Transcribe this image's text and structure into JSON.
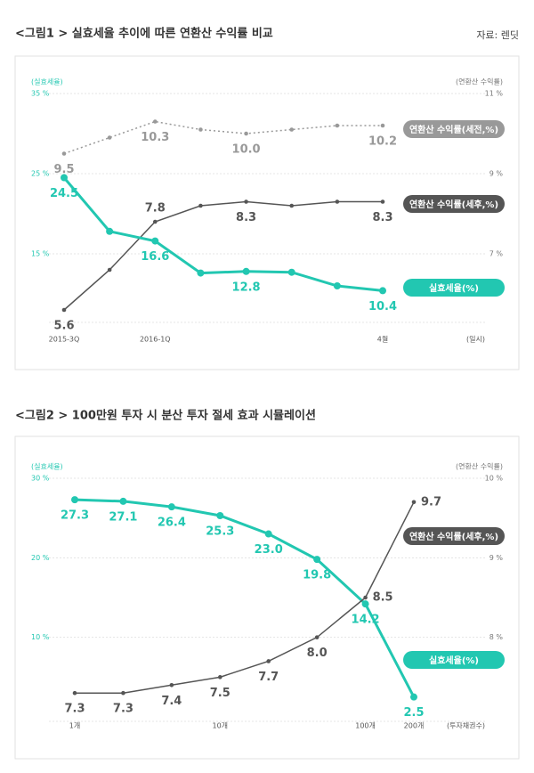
{
  "source": "자료: 렌딧",
  "chart_data": [
    {
      "type": "line",
      "title": "<그림1 > 실효세율 추이에 따른 연환산 수익률 비교",
      "y_label": "(실효세율)",
      "y2_label": "(연환산 수익률)",
      "x_label": "(일시)",
      "categories": [
        "2015-3Q",
        null,
        "2016-1Q",
        null,
        null,
        null,
        null,
        "4월"
      ],
      "ylim": [
        7,
        35
      ],
      "yticks": [
        {
          "value": 35,
          "label": "35 %"
        },
        {
          "value": 25,
          "label": "25 %"
        },
        {
          "value": 15,
          "label": "15 %"
        }
      ],
      "y2lim": [
        5.4,
        11
      ],
      "y2ticks": [
        {
          "value": 11,
          "label": "11 %"
        },
        {
          "value": 9,
          "label": "9 %"
        },
        {
          "value": 7,
          "label": "7 %"
        }
      ],
      "grid": true,
      "series": [
        {
          "name": "연환산 수익률(세전,%)",
          "color": "#999999",
          "axis": "y2",
          "dashed": true,
          "values": [
            9.5,
            9.9,
            10.3,
            10.1,
            10.0,
            10.1,
            10.2,
            10.2
          ],
          "value_labels": [
            "9.5",
            null,
            "10.3",
            null,
            "10.0",
            null,
            null,
            "10.2"
          ]
        },
        {
          "name": "연환산 수익률(세후,%)",
          "color": "#555555",
          "axis": "y2",
          "values": [
            5.6,
            6.6,
            7.8,
            8.2,
            8.3,
            8.2,
            8.3,
            8.3
          ],
          "value_labels": [
            "5.6",
            null,
            "7.8",
            null,
            "8.3",
            null,
            null,
            "8.3"
          ]
        },
        {
          "name": "실효세율(%)",
          "color": "#22c7b1",
          "values": [
            24.5,
            17.8,
            16.6,
            12.6,
            12.8,
            12.7,
            11.0,
            10.4
          ],
          "value_labels": [
            "24.5",
            null,
            "16.6",
            null,
            "12.8",
            null,
            null,
            "10.4"
          ]
        }
      ]
    },
    {
      "type": "line",
      "title": "<그림2 > 100만원 투자 시 분산 투자 절세 효과 시뮬레이션",
      "y_label": "(실효세율)",
      "y2_label": "(연환산 수익률)",
      "x_label": "(투자채권수)",
      "categories": [
        "1개",
        null,
        null,
        "10개",
        null,
        null,
        "100개",
        "200개"
      ],
      "ylim": [
        0,
        30
      ],
      "yticks": [
        {
          "value": 30,
          "label": "30 %"
        },
        {
          "value": 20,
          "label": "20 %"
        },
        {
          "value": 10,
          "label": "10 %"
        }
      ],
      "y2lim": [
        7,
        10
      ],
      "y2ticks": [
        {
          "value": 10,
          "label": "10 %"
        },
        {
          "value": 9,
          "label": "9 %"
        },
        {
          "value": 8,
          "label": "8 %"
        }
      ],
      "grid": true,
      "series": [
        {
          "name": "실효세율(%)",
          "color": "#22c7b1",
          "values": [
            27.3,
            27.1,
            26.4,
            25.3,
            23.0,
            19.8,
            14.2,
            2.5
          ],
          "value_labels": [
            "27.3",
            "27.1",
            "26.4",
            "25.3",
            "23.0",
            "19.8",
            "14.2",
            "2.5"
          ]
        },
        {
          "name": "연환산 수익률(세후,%)",
          "color": "#555555",
          "axis": "y2",
          "values": [
            7.3,
            7.3,
            7.4,
            7.5,
            7.7,
            8.0,
            8.5,
            9.7
          ],
          "value_labels": [
            "7.3",
            "7.3",
            "7.4",
            "7.5",
            "7.7",
            "8.0",
            "8.5",
            "9.7"
          ]
        }
      ]
    }
  ]
}
